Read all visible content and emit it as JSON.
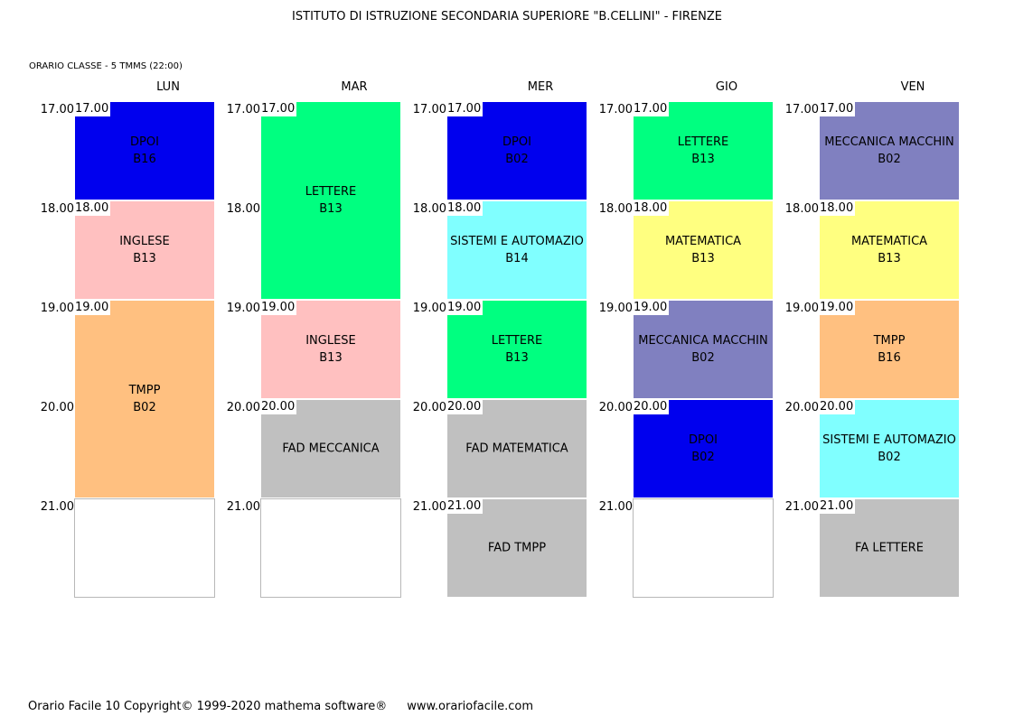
{
  "title": "ISTITUTO DI ISTRUZIONE SECONDARIA SUPERIORE \"B.CELLINI\" - FIRENZE",
  "classe": "ORARIO CLASSE   -   5 TMMS  (22:00)",
  "colors": {
    "dpoi": "#0000ee",
    "lettere": "#00ff80",
    "inglese": "#ffc0c0",
    "tmpp": "#ffc080",
    "sistemi": "#80ffff",
    "matematica": "#ffff80",
    "meccanica": "#8080c0",
    "fad": "#c0c0c0"
  },
  "days": [
    {
      "name": "LUN",
      "times": [
        "17.00",
        "18.00",
        "19.00",
        "20.00",
        "21.00"
      ],
      "lessons": [
        {
          "start": "17.00",
          "subject": "DPOI",
          "room": "B16"
        },
        {
          "start": "18.00",
          "subject": "INGLESE",
          "room": "B13"
        },
        {
          "start": "19.00",
          "subject": "TMPP",
          "room": "B02"
        }
      ]
    },
    {
      "name": "MAR",
      "times": [
        "17.00",
        "18.00",
        "19.00",
        "20.00",
        "21.00"
      ],
      "lessons": [
        {
          "start": "17.00",
          "subject": "LETTERE",
          "room": "B13"
        },
        {
          "start": "19.00",
          "subject": "INGLESE",
          "room": "B13"
        },
        {
          "start": "20.00",
          "subject": "FAD MECCANICA",
          "room": ""
        }
      ]
    },
    {
      "name": "MER",
      "times": [
        "17.00",
        "18.00",
        "19.00",
        "20.00",
        "21.00"
      ],
      "lessons": [
        {
          "start": "17.00",
          "subject": "DPOI",
          "room": "B02"
        },
        {
          "start": "18.00",
          "subject": "SISTEMI E AUTOMAZIO",
          "room": "B14"
        },
        {
          "start": "19.00",
          "subject": "LETTERE",
          "room": "B13"
        },
        {
          "start": "20.00",
          "subject": "FAD MATEMATICA",
          "room": ""
        },
        {
          "start": "21.00",
          "subject": "FAD TMPP",
          "room": ""
        }
      ]
    },
    {
      "name": "GIO",
      "times": [
        "17.00",
        "18.00",
        "19.00",
        "20.00",
        "21.00"
      ],
      "lessons": [
        {
          "start": "17.00",
          "subject": "LETTERE",
          "room": "B13"
        },
        {
          "start": "18.00",
          "subject": "MATEMATICA",
          "room": "B13"
        },
        {
          "start": "19.00",
          "subject": "MECCANICA MACCHIN",
          "room": "B02"
        },
        {
          "start": "20.00",
          "subject": "DPOI",
          "room": "B02"
        }
      ]
    },
    {
      "name": "VEN",
      "times": [
        "17.00",
        "18.00",
        "19.00",
        "20.00",
        "21.00"
      ],
      "lessons": [
        {
          "start": "17.00",
          "subject": "MECCANICA MACCHIN",
          "room": "B02"
        },
        {
          "start": "18.00",
          "subject": "MATEMATICA",
          "room": "B13"
        },
        {
          "start": "19.00",
          "subject": "TMPP",
          "room": "B16"
        },
        {
          "start": "20.00",
          "subject": "SISTEMI E AUTOMAZIO",
          "room": "B02"
        },
        {
          "start": "21.00",
          "subject": "FA LETTERE",
          "room": ""
        }
      ]
    }
  ],
  "footer": {
    "copyright": "Orario Facile 10  Copyright© 1999-2020 mathema software®",
    "site": "www.orariofacile.com"
  }
}
